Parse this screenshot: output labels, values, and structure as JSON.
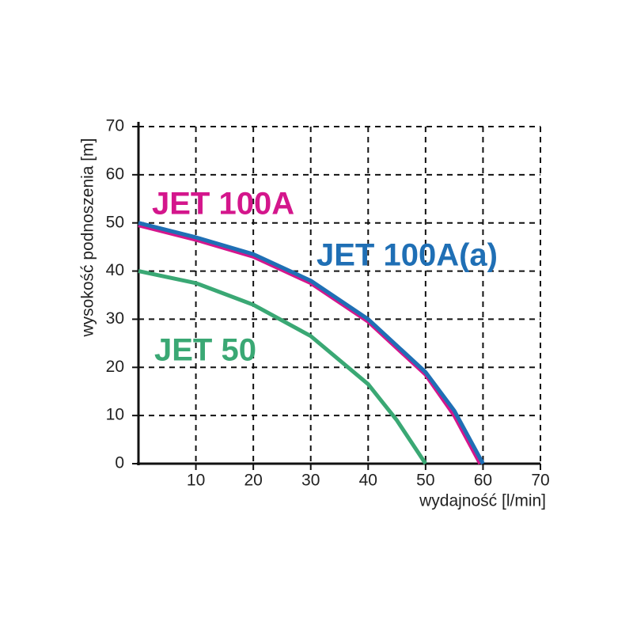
{
  "chart_data": {
    "type": "line",
    "x_label": "wydajność [l/min]",
    "y_label": "wysokość podnoszenia [m]",
    "xlim": [
      0,
      70
    ],
    "xticks": [
      10,
      20,
      30,
      40,
      50,
      60,
      70
    ],
    "ylim": [
      0,
      70
    ],
    "yticks": [
      0,
      10,
      20,
      30,
      40,
      50,
      60,
      70
    ],
    "grid": true,
    "series": [
      {
        "name": "JET 100A",
        "color": "#d4168c",
        "x": [
          0,
          10,
          20,
          30,
          40,
          50,
          55,
          59.5
        ],
        "values": [
          49.5,
          46.5,
          43,
          37.5,
          29.5,
          18.5,
          10,
          0
        ]
      },
      {
        "name": "JET 100A(a)",
        "color": "#1f6fb5",
        "x": [
          0,
          10,
          20,
          30,
          40,
          50,
          55,
          60
        ],
        "values": [
          50,
          47,
          43.5,
          38,
          30,
          19,
          11,
          0
        ]
      },
      {
        "name": "JET 50",
        "color": "#3aa874",
        "x": [
          0,
          10,
          20,
          30,
          40,
          45,
          50
        ],
        "values": [
          40,
          37.5,
          33,
          26.5,
          16.5,
          9,
          0
        ]
      }
    ]
  }
}
